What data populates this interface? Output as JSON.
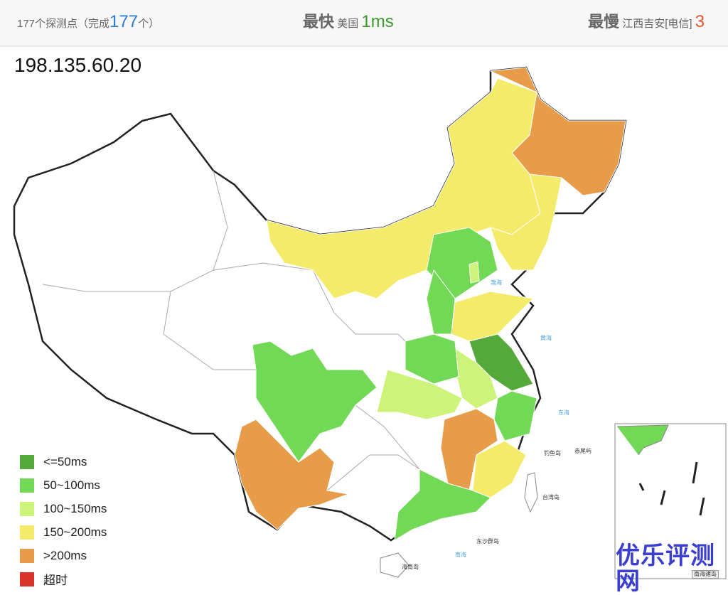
{
  "header": {
    "probe_count_text": "177个探测点（完成",
    "completed": "177",
    "completed_suffix": "个）",
    "fastest_label": "最快",
    "fastest_location": "美国",
    "fastest_value": "1ms",
    "slowest_label": "最慢",
    "slowest_location": "江西吉安[电信]",
    "slowest_value_partial": "3"
  },
  "ip": "198.135.60.20",
  "legend": [
    {
      "label": "<=50ms",
      "color": "#55a83a"
    },
    {
      "label": "50~100ms",
      "color": "#72d957"
    },
    {
      "label": "100~150ms",
      "color": "#cdf47a"
    },
    {
      "label": "150~200ms",
      "color": "#f5eb6b"
    },
    {
      "label": ">200ms",
      "color": "#e89c4a"
    },
    {
      "label": "超时",
      "color": "#d9342b"
    }
  ],
  "map_labels": {
    "bohai": "渤海",
    "yellow_sea": "黄海",
    "east_sea": "东海",
    "diaoyu": "钓鱼岛",
    "chiwei": "赤尾屿",
    "taiwan": "台湾岛",
    "dongsha": "东沙群岛",
    "hainan": "海南岛",
    "south_sea": "南海",
    "south_sea_islands": "南海诸岛"
  },
  "watermark": "优乐评测网"
}
